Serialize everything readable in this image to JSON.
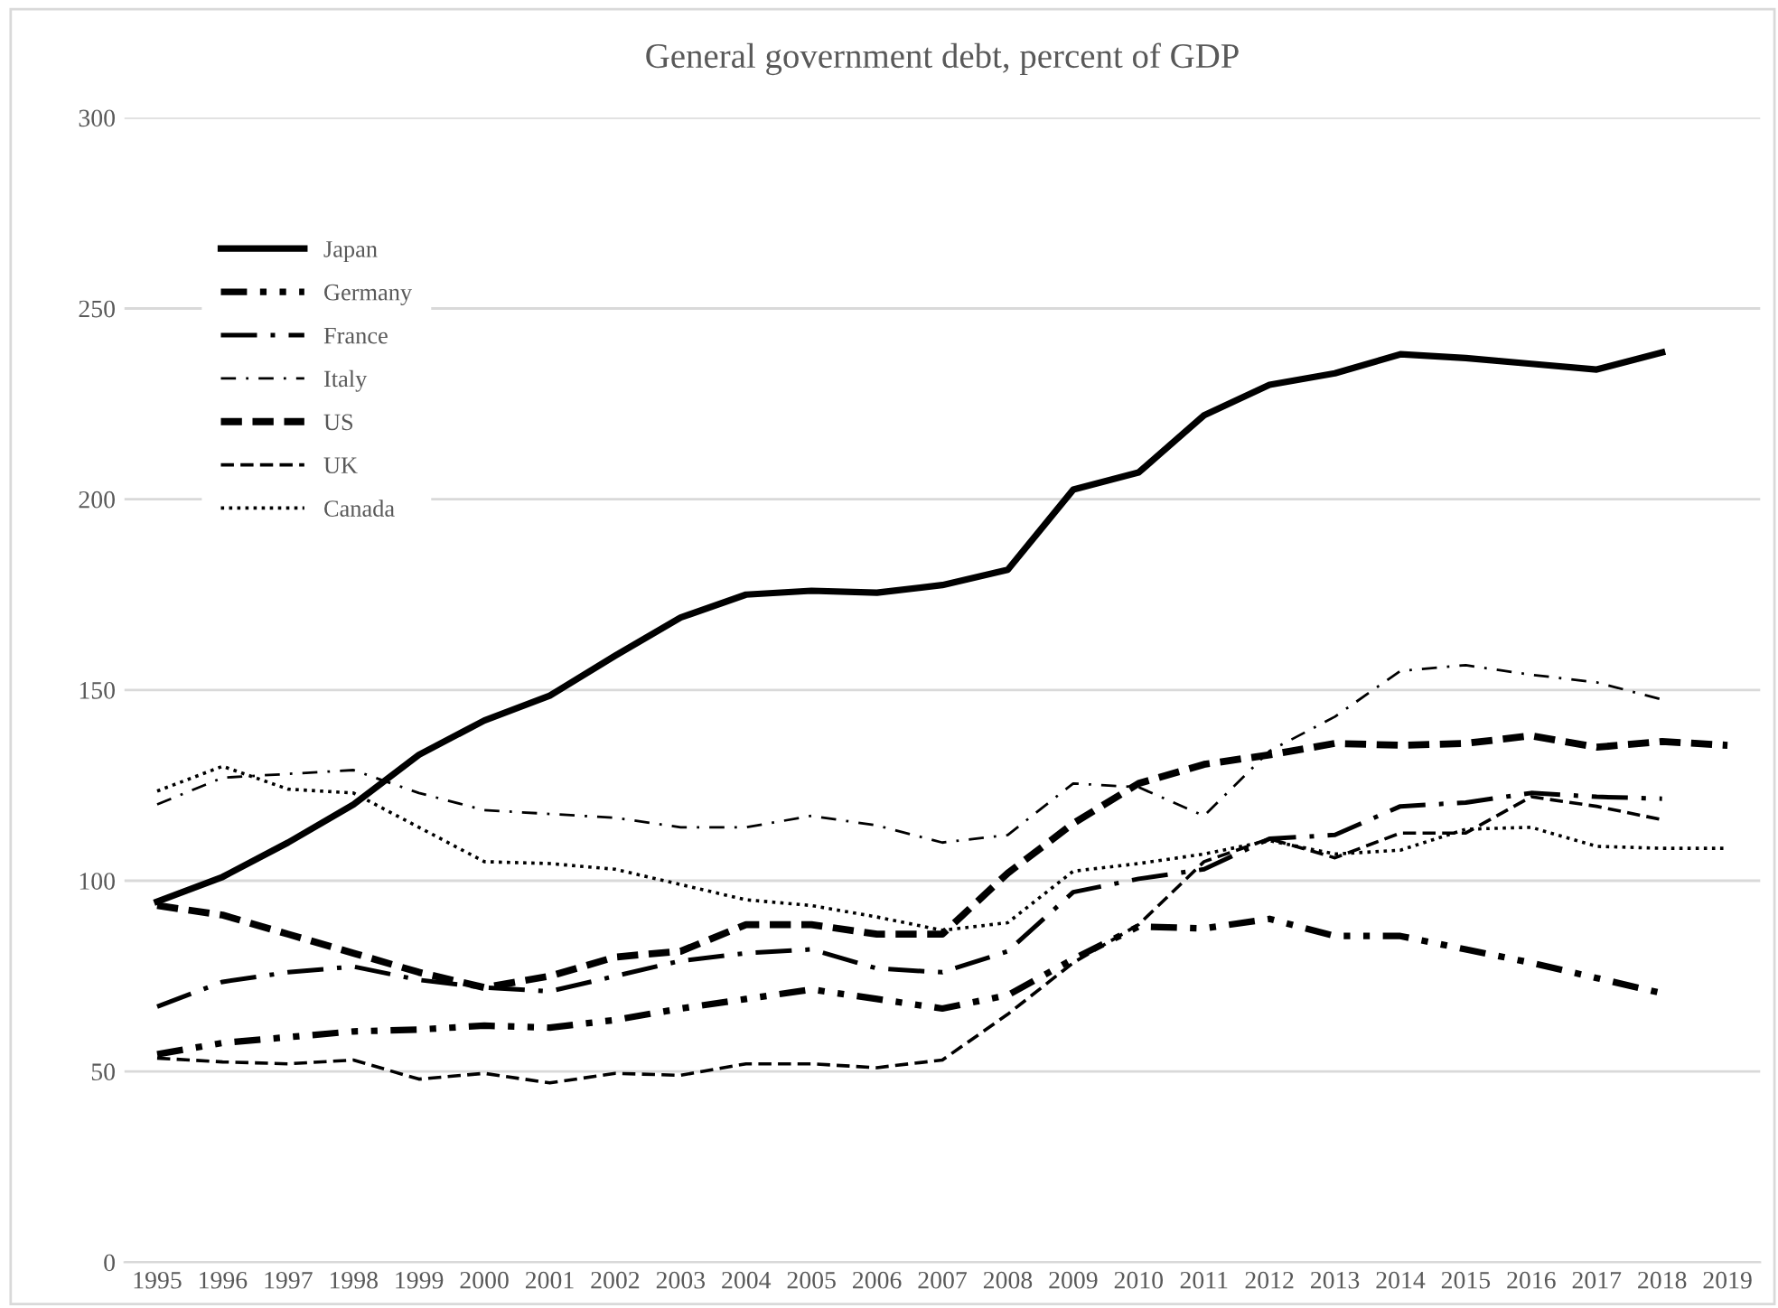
{
  "chart_data": {
    "type": "line",
    "title": "General government debt, percent of GDP",
    "categories": [
      "1995",
      "1996",
      "1997",
      "1998",
      "1999",
      "2000",
      "2001",
      "2002",
      "2003",
      "2004",
      "2005",
      "2006",
      "2007",
      "2008",
      "2009",
      "2010",
      "2011",
      "2012",
      "2013",
      "2014",
      "2015",
      "2016",
      "2017",
      "2018",
      "2019"
    ],
    "series": [
      {
        "name": "Japan",
        "color": "#000000",
        "line_style": "solid",
        "values": [
          94.5,
          101,
          110,
          120,
          133,
          142,
          148.5,
          159,
          169,
          175,
          176,
          175.5,
          177.5,
          181.5,
          202.5,
          207,
          222,
          230,
          233,
          238,
          237,
          235.5,
          234,
          238.5,
          null
        ]
      },
      {
        "name": "Germany",
        "color": "#000000",
        "line_style": "dashdotdot",
        "values": [
          54.5,
          57.5,
          59,
          60.5,
          61,
          62,
          61.5,
          63.5,
          66.5,
          69,
          71.5,
          69,
          66.5,
          70,
          79.5,
          88,
          87.5,
          90,
          85.5,
          85.5,
          82,
          78.5,
          74.5,
          70.5,
          null
        ]
      },
      {
        "name": "France",
        "color": "#000000",
        "line_style": "longdashdot",
        "values": [
          67,
          73.5,
          76,
          77.5,
          74,
          72,
          71,
          75,
          79,
          81,
          82,
          77,
          76,
          81.5,
          97,
          100.5,
          103,
          111,
          112,
          119.5,
          120.5,
          123,
          122,
          121.5,
          null
        ]
      },
      {
        "name": "Italy",
        "color": "#000000",
        "line_style": "dashdot",
        "values": [
          120,
          127,
          128,
          129,
          123,
          118.5,
          117.5,
          116.5,
          114,
          114,
          117,
          114.5,
          110,
          112,
          125.5,
          124.5,
          117,
          134,
          143,
          155,
          156.5,
          154,
          152,
          147.5,
          null
        ]
      },
      {
        "name": "US",
        "color": "#000000",
        "line_style": "heavydashed",
        "values": [
          93.5,
          91,
          86,
          81,
          76,
          72,
          75,
          80,
          81.5,
          88.5,
          88.5,
          86,
          86,
          102,
          115,
          125.5,
          130.5,
          133,
          136,
          135.5,
          136,
          138,
          135,
          136.5,
          135.5
        ]
      },
      {
        "name": "UK",
        "color": "#000000",
        "line_style": "dashed",
        "values": [
          53.5,
          52.5,
          52,
          53,
          48,
          49.5,
          47,
          49.5,
          49,
          52,
          52,
          51,
          53,
          65,
          78.5,
          88.5,
          105,
          111,
          106,
          112.5,
          112.5,
          122,
          119.5,
          116,
          null
        ]
      },
      {
        "name": "Canada",
        "color": "#000000",
        "line_style": "dotted",
        "values": [
          123.5,
          130,
          124,
          123,
          114,
          105,
          104.5,
          103,
          99,
          95,
          93.5,
          90.5,
          87,
          89,
          102.5,
          104.5,
          107,
          110.5,
          107,
          108,
          113.5,
          114,
          109,
          108.5,
          108.5
        ]
      }
    ],
    "ylim": [
      0,
      300
    ],
    "yticks": [
      0,
      50,
      100,
      150,
      200,
      250,
      300
    ],
    "grid": "y",
    "legend": "top left"
  }
}
